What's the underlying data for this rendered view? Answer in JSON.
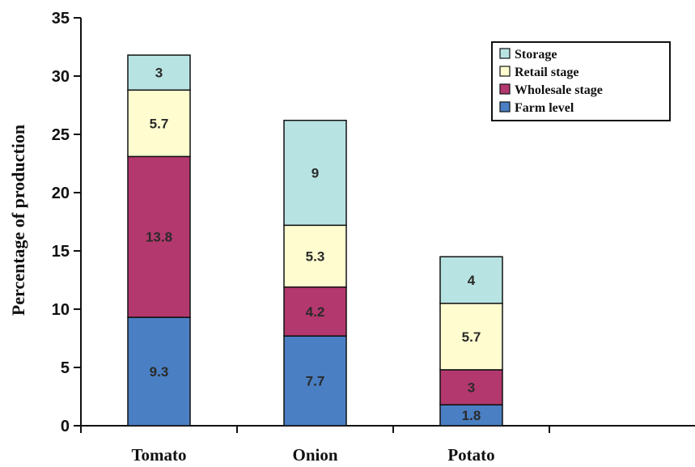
{
  "chart_data": {
    "type": "bar",
    "stacked": true,
    "title": "",
    "xlabel": "",
    "ylabel": "Percentage of production",
    "ylim": [
      0,
      35
    ],
    "yticks": [
      0,
      5,
      10,
      15,
      20,
      25,
      30,
      35
    ],
    "categories": [
      "Tomato",
      "Onion",
      "Potato"
    ],
    "series": [
      {
        "name": "Farm level",
        "color": "#4a7fc3",
        "values": [
          9.3,
          7.7,
          1.8
        ],
        "labels": [
          "9.3",
          "7.7",
          "1.8"
        ]
      },
      {
        "name": "Wholesale stage",
        "color": "#b3386e",
        "values": [
          13.8,
          4.2,
          3
        ],
        "labels": [
          "13.8",
          "4.2",
          "3"
        ]
      },
      {
        "name": "Retail stage",
        "color": "#fffdd0",
        "values": [
          5.7,
          5.3,
          5.7
        ],
        "labels": [
          "5.7",
          "5.3",
          "5.7"
        ]
      },
      {
        "name": "Storage",
        "color": "#b8e3e3",
        "values": [
          3,
          9,
          4
        ],
        "labels": [
          "3",
          "9",
          "4"
        ]
      }
    ],
    "legend": {
      "position": "top-right",
      "order": [
        "Storage",
        "Retail stage",
        "Wholesale stage",
        "Farm level"
      ]
    },
    "grid": false
  }
}
